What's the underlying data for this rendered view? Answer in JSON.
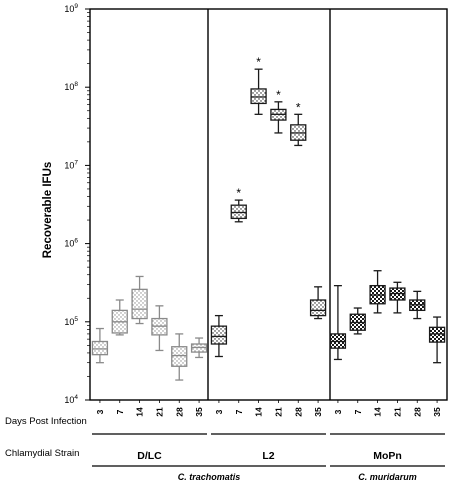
{
  "chart_data": {
    "type": "boxplot",
    "ylabel": "Recoverable IFUs",
    "yscale": "log",
    "ylim": [
      10000,
      1000000000
    ],
    "y_ticks": [
      {
        "value": 10000,
        "base": "10",
        "exp": "4"
      },
      {
        "value": 100000,
        "base": "10",
        "exp": "5"
      },
      {
        "value": 1000000,
        "base": "10",
        "exp": "6"
      },
      {
        "value": 10000000,
        "base": "10",
        "exp": "7"
      },
      {
        "value": 100000000,
        "base": "10",
        "exp": "8"
      },
      {
        "value": 1000000000,
        "base": "10",
        "exp": "9"
      }
    ],
    "x_axis_row_label": "Days Post Infection",
    "strain_row_label": "Chlamydial Strain",
    "significance_marker": "*",
    "groups": [
      {
        "strain": "D/LC",
        "species": "C. trachomatis",
        "color": "#8a8a8a",
        "pattern": "dots",
        "boxes": [
          {
            "day": "3",
            "min": 30000,
            "q1": 38000,
            "median": 45000,
            "q3": 56000,
            "max": 82000,
            "significant": false
          },
          {
            "day": "7",
            "min": 68000,
            "q1": 72000,
            "median": 100000,
            "q3": 140000,
            "max": 190000,
            "significant": false
          },
          {
            "day": "14",
            "min": 95000,
            "q1": 110000,
            "median": 145000,
            "q3": 260000,
            "max": 380000,
            "significant": false
          },
          {
            "day": "21",
            "min": 43000,
            "q1": 68000,
            "median": 88000,
            "q3": 110000,
            "max": 160000,
            "significant": false
          },
          {
            "day": "28",
            "min": 18000,
            "q1": 27000,
            "median": 37000,
            "q3": 48000,
            "max": 70000,
            "significant": false
          },
          {
            "day": "35",
            "min": 35000,
            "q1": 41000,
            "median": 47000,
            "q3": 52000,
            "max": 62000,
            "significant": false
          }
        ]
      },
      {
        "strain": "L2",
        "species": "C. trachomatis",
        "color": "#1a1a1a",
        "pattern": "dots",
        "boxes": [
          {
            "day": "3",
            "min": 36000,
            "q1": 52000,
            "median": 65000,
            "q3": 88000,
            "max": 120000,
            "significant": false
          },
          {
            "day": "7",
            "min": 1900000,
            "q1": 2100000,
            "median": 2500000,
            "q3": 3100000,
            "max": 3600000,
            "significant": true
          },
          {
            "day": "14",
            "min": 45000000,
            "q1": 62000000,
            "median": 75000000,
            "q3": 95000000,
            "max": 170000000,
            "significant": true
          },
          {
            "day": "21",
            "min": 26000000,
            "q1": 38000000,
            "median": 45000000,
            "q3": 52000000,
            "max": 65000000,
            "significant": true
          },
          {
            "day": "28",
            "min": 18000000,
            "q1": 21000000,
            "median": 26000000,
            "q3": 33000000,
            "max": 45000000,
            "significant": true
          },
          {
            "day": "35",
            "min": 110000,
            "q1": 120000,
            "median": 140000,
            "q3": 190000,
            "max": 280000,
            "significant": false
          }
        ]
      },
      {
        "strain": "MoPn",
        "species": "C. muridarum",
        "color": "#1a1a1a",
        "pattern": "checker",
        "boxes": [
          {
            "day": "3",
            "min": 33000,
            "q1": 46000,
            "median": 56000,
            "q3": 70000,
            "max": 290000,
            "significant": false
          },
          {
            "day": "7",
            "min": 70000,
            "q1": 78000,
            "median": 98000,
            "q3": 125000,
            "max": 150000,
            "significant": false
          },
          {
            "day": "14",
            "min": 130000,
            "q1": 170000,
            "median": 220000,
            "q3": 290000,
            "max": 450000,
            "significant": false
          },
          {
            "day": "21",
            "min": 130000,
            "q1": 190000,
            "median": 230000,
            "q3": 270000,
            "max": 320000,
            "significant": false
          },
          {
            "day": "28",
            "min": 110000,
            "q1": 140000,
            "median": 165000,
            "q3": 190000,
            "max": 245000,
            "significant": false
          },
          {
            "day": "35",
            "min": 30000,
            "q1": 55000,
            "median": 70000,
            "q3": 85000,
            "max": 115000,
            "significant": false
          }
        ]
      }
    ],
    "species_labels": [
      "C. trachomatis",
      "C. muridarum"
    ]
  }
}
